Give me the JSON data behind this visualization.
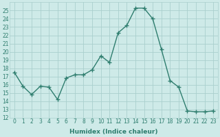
{
  "x": [
    0,
    1,
    2,
    3,
    4,
    5,
    6,
    7,
    8,
    9,
    10,
    11,
    12,
    13,
    14,
    15,
    16,
    17,
    18,
    19,
    20,
    21,
    22,
    23
  ],
  "y": [
    17.5,
    15.8,
    14.8,
    15.8,
    15.7,
    14.2,
    16.8,
    17.2,
    17.2,
    17.8,
    19.5,
    18.7,
    22.3,
    23.2,
    25.3,
    25.3,
    24.0,
    20.3,
    16.5,
    15.7,
    12.8,
    12.7,
    12.7,
    12.8
  ],
  "xlabel": "Humidex (Indice chaleur)",
  "xlim": [
    -0.5,
    23.5
  ],
  "ylim": [
    12,
    26
  ],
  "yticks": [
    12,
    13,
    14,
    15,
    16,
    17,
    18,
    19,
    20,
    21,
    22,
    23,
    24,
    25
  ],
  "xticks": [
    0,
    1,
    2,
    3,
    4,
    5,
    6,
    7,
    8,
    9,
    10,
    11,
    12,
    13,
    14,
    15,
    16,
    17,
    18,
    19,
    20,
    21,
    22,
    23
  ],
  "line_color": "#2e7d6e",
  "marker": "+",
  "marker_size": 4,
  "marker_lw": 1.0,
  "line_width": 1.0,
  "bg_color": "#ceeae8",
  "grid_color": "#aacfcd",
  "xlabel_fontsize": 6.5,
  "tick_fontsize": 5.5
}
